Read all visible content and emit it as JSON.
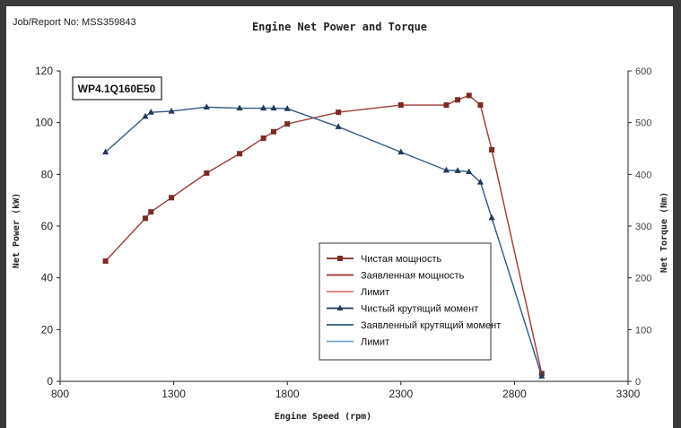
{
  "header": {
    "job_report": "Job/Report No: MSS359843"
  },
  "chart_data": {
    "type": "line",
    "title": "Engine Net Power and Torque",
    "xlabel": "Engine Speed (rpm)",
    "ylabel": "Net Power (kW)",
    "y2label": "Net Torque (Nm)",
    "model_label": "WP4.1Q160E50",
    "xlim": [
      800,
      3300
    ],
    "ylim": [
      0,
      120
    ],
    "y2lim": [
      0,
      600
    ],
    "x_ticks": [
      "800",
      "1300",
      "1800",
      "2300",
      "2800",
      "3300"
    ],
    "y_ticks": [
      "0",
      "20",
      "40",
      "60",
      "80",
      "100",
      "120"
    ],
    "y2_ticks": [
      "0",
      "100",
      "200",
      "300",
      "400",
      "500",
      "600"
    ],
    "grid": false,
    "legend_position": "center-right",
    "legend": [
      {
        "label": "Чистая мощность",
        "color": "#7b2a24",
        "marker": "square"
      },
      {
        "label": "Заявленная мощность",
        "color": "#9b2d2a",
        "marker": "none"
      },
      {
        "label": "Лимит",
        "color": "#e07a70",
        "marker": "none"
      },
      {
        "label": "Чистый крутящий момент",
        "color": "#1f3a5c",
        "marker": "triangle"
      },
      {
        "label": "Заявленный крутящий момент",
        "color": "#2d5a86",
        "marker": "none"
      },
      {
        "label": "Лимит",
        "color": "#7aa6cc",
        "marker": "none"
      }
    ],
    "series": [
      {
        "name": "Чистая мощность",
        "axis": "left",
        "color": "#9b3a33",
        "marker_color": "#7b2a24",
        "marker": "square",
        "x": [
          1000,
          1175,
          1200,
          1290,
          1445,
          1590,
          1695,
          1740,
          1800,
          2025,
          2300,
          2500,
          2550,
          2600,
          2650,
          2700,
          2920
        ],
        "y": [
          46.5,
          63,
          65.5,
          71,
          80.5,
          88,
          94,
          96.5,
          99.5,
          104,
          106.8,
          106.8,
          108.8,
          110.5,
          106.8,
          89.5,
          3
        ]
      },
      {
        "name": "Чистый крутящий момент",
        "axis": "right",
        "color": "#2d5a86",
        "marker_color": "#1f3a5c",
        "marker": "triangle",
        "x": [
          1000,
          1175,
          1200,
          1290,
          1445,
          1590,
          1695,
          1740,
          1800,
          2025,
          2300,
          2500,
          2550,
          2600,
          2650,
          2700,
          2920
        ],
        "y": [
          443,
          512,
          520,
          522,
          530,
          528,
          528,
          528,
          527,
          492,
          443,
          408,
          407,
          405,
          385,
          316,
          10
        ]
      }
    ]
  }
}
